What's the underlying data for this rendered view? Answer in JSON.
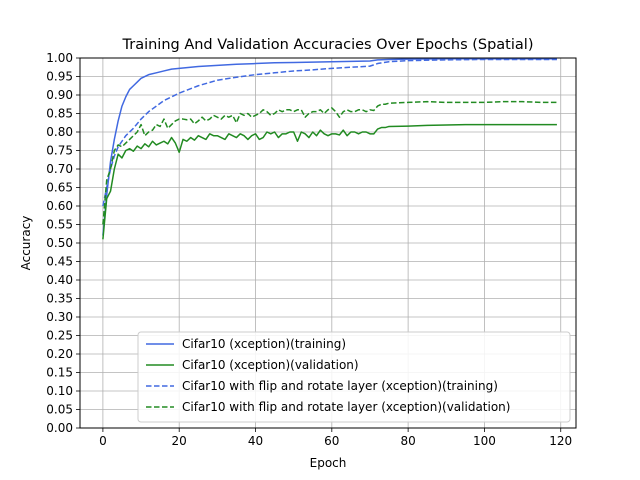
{
  "chart_data": {
    "type": "line",
    "title": "Training And Validation Accuracies Over Epochs (Spatial)",
    "xlabel": "Epoch",
    "ylabel": "Accuracy",
    "xlim": [
      -6,
      124
    ],
    "ylim": [
      0.0,
      1.0
    ],
    "xticks": [
      0,
      20,
      40,
      60,
      80,
      100,
      120
    ],
    "yticks": [
      0.0,
      0.05,
      0.1,
      0.15,
      0.2,
      0.25,
      0.3,
      0.35,
      0.4,
      0.45,
      0.5,
      0.55,
      0.6,
      0.65,
      0.7,
      0.75,
      0.8,
      0.85,
      0.9,
      0.95,
      1.0
    ],
    "ytick_labels": [
      "0.00",
      "0.05",
      "0.10",
      "0.15",
      "0.20",
      "0.25",
      "0.30",
      "0.35",
      "0.40",
      "0.45",
      "0.50",
      "0.55",
      "0.60",
      "0.65",
      "0.70",
      "0.75",
      "0.80",
      "0.85",
      "0.90",
      "0.95",
      "1.00"
    ],
    "grid": true,
    "legend_position": "lower-center",
    "series": [
      {
        "name": "Cifar10 (xception)(training)",
        "color": "#4169e1",
        "style": "solid",
        "x": [
          0,
          1,
          2,
          3,
          4,
          5,
          6,
          7,
          8,
          9,
          10,
          12,
          14,
          16,
          18,
          20,
          25,
          30,
          35,
          40,
          45,
          50,
          55,
          60,
          65,
          70,
          72,
          75,
          80,
          90,
          100,
          110,
          119
        ],
        "y": [
          0.52,
          0.63,
          0.72,
          0.78,
          0.83,
          0.87,
          0.895,
          0.915,
          0.925,
          0.935,
          0.945,
          0.955,
          0.96,
          0.965,
          0.97,
          0.972,
          0.977,
          0.98,
          0.983,
          0.985,
          0.987,
          0.988,
          0.989,
          0.99,
          0.991,
          0.992,
          0.995,
          0.996,
          0.997,
          0.998,
          0.998,
          0.998,
          0.998
        ]
      },
      {
        "name": "Cifar10 (xception)(validation)",
        "color": "#228b22",
        "style": "solid",
        "x": [
          0,
          1,
          2,
          3,
          4,
          5,
          6,
          7,
          8,
          9,
          10,
          11,
          12,
          13,
          14,
          15,
          16,
          17,
          18,
          19,
          20,
          21,
          22,
          23,
          24,
          25,
          26,
          27,
          28,
          29,
          30,
          31,
          32,
          33,
          34,
          35,
          36,
          37,
          38,
          39,
          40,
          41,
          42,
          43,
          44,
          45,
          46,
          47,
          48,
          49,
          50,
          51,
          52,
          53,
          54,
          55,
          56,
          57,
          58,
          59,
          60,
          61,
          62,
          63,
          64,
          65,
          66,
          67,
          68,
          69,
          70,
          71,
          72,
          73,
          74,
          75,
          80,
          85,
          90,
          95,
          100,
          105,
          110,
          115,
          119
        ],
        "y": [
          0.51,
          0.62,
          0.64,
          0.7,
          0.74,
          0.73,
          0.75,
          0.755,
          0.748,
          0.762,
          0.755,
          0.768,
          0.76,
          0.775,
          0.765,
          0.77,
          0.775,
          0.768,
          0.785,
          0.77,
          0.745,
          0.78,
          0.775,
          0.785,
          0.778,
          0.79,
          0.785,
          0.78,
          0.795,
          0.79,
          0.79,
          0.785,
          0.78,
          0.795,
          0.79,
          0.785,
          0.795,
          0.79,
          0.78,
          0.79,
          0.795,
          0.78,
          0.785,
          0.8,
          0.795,
          0.8,
          0.785,
          0.795,
          0.795,
          0.8,
          0.8,
          0.775,
          0.8,
          0.795,
          0.785,
          0.8,
          0.79,
          0.805,
          0.795,
          0.79,
          0.795,
          0.795,
          0.792,
          0.805,
          0.79,
          0.8,
          0.8,
          0.795,
          0.8,
          0.8,
          0.795,
          0.795,
          0.808,
          0.812,
          0.812,
          0.815,
          0.816,
          0.818,
          0.819,
          0.82,
          0.82,
          0.82,
          0.82,
          0.82,
          0.82
        ]
      },
      {
        "name": "Cifar10 with flip and rotate layer (xception)(training)",
        "color": "#4169e1",
        "style": "dashed",
        "x": [
          0,
          1,
          2,
          3,
          4,
          5,
          6,
          8,
          10,
          12,
          14,
          16,
          18,
          20,
          25,
          30,
          35,
          40,
          45,
          50,
          55,
          60,
          65,
          70,
          72,
          75,
          80,
          90,
          100,
          110,
          119
        ],
        "y": [
          0.6,
          0.65,
          0.7,
          0.735,
          0.76,
          0.775,
          0.79,
          0.81,
          0.835,
          0.855,
          0.87,
          0.885,
          0.895,
          0.905,
          0.925,
          0.94,
          0.948,
          0.955,
          0.96,
          0.965,
          0.968,
          0.972,
          0.975,
          0.978,
          0.985,
          0.99,
          0.993,
          0.995,
          0.996,
          0.996,
          0.996
        ]
      },
      {
        "name": "Cifar10 with flip and rotate layer (xception)(validation)",
        "color": "#228b22",
        "style": "dashed",
        "x": [
          0,
          1,
          2,
          3,
          4,
          5,
          6,
          7,
          8,
          9,
          10,
          11,
          12,
          13,
          14,
          15,
          16,
          17,
          18,
          19,
          20,
          21,
          22,
          23,
          24,
          25,
          26,
          27,
          28,
          29,
          30,
          31,
          32,
          33,
          34,
          35,
          36,
          37,
          38,
          39,
          40,
          41,
          42,
          43,
          44,
          45,
          46,
          47,
          48,
          49,
          50,
          51,
          52,
          53,
          54,
          55,
          56,
          57,
          58,
          59,
          60,
          61,
          62,
          63,
          64,
          65,
          66,
          67,
          68,
          69,
          70,
          71,
          72,
          73,
          74,
          75,
          80,
          85,
          90,
          95,
          100,
          105,
          110,
          115,
          119
        ],
        "y": [
          0.55,
          0.67,
          0.7,
          0.75,
          0.765,
          0.76,
          0.77,
          0.78,
          0.79,
          0.8,
          0.82,
          0.79,
          0.8,
          0.805,
          0.82,
          0.815,
          0.835,
          0.81,
          0.82,
          0.83,
          0.835,
          0.835,
          0.833,
          0.835,
          0.822,
          0.83,
          0.84,
          0.83,
          0.835,
          0.845,
          0.84,
          0.835,
          0.845,
          0.84,
          0.845,
          0.825,
          0.85,
          0.845,
          0.85,
          0.84,
          0.845,
          0.85,
          0.86,
          0.855,
          0.845,
          0.85,
          0.86,
          0.855,
          0.86,
          0.86,
          0.855,
          0.86,
          0.86,
          0.84,
          0.85,
          0.855,
          0.855,
          0.86,
          0.85,
          0.86,
          0.865,
          0.855,
          0.84,
          0.855,
          0.86,
          0.855,
          0.855,
          0.86,
          0.86,
          0.855,
          0.86,
          0.858,
          0.87,
          0.875,
          0.875,
          0.878,
          0.88,
          0.882,
          0.88,
          0.88,
          0.88,
          0.882,
          0.882,
          0.88,
          0.88
        ]
      }
    ]
  }
}
